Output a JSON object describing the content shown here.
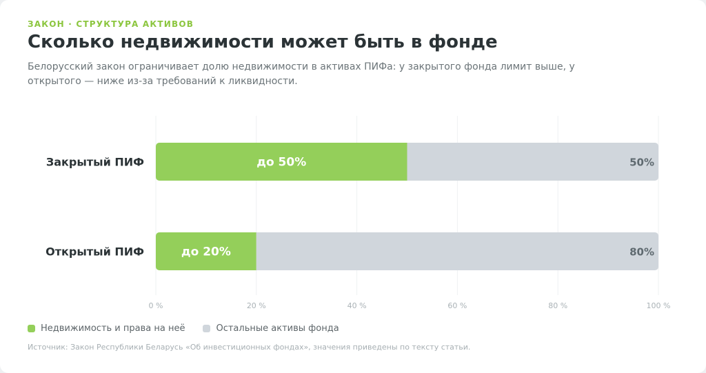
{
  "header": {
    "eyebrow": "ЗАКОН · СТРУКТУРА АКТИВОВ",
    "title": "Сколько недвижимости может быть в фонде",
    "subtitle": "Белорусский закон ограничивает долю недвижимости в активах ПИФа: у закрытого фонда лимит выше, у открытого — ниже из-за требований к ликвидности."
  },
  "legend": {
    "realty_label": "Недвижимость и права на неё",
    "other_label": "Остальные активы фонда"
  },
  "source": "Источник: Закон Республики Беларусь «Об инвестиционных фондах», значения приведены по тексту статьи.",
  "colors": {
    "realty": "#94cf5a",
    "other": "#d0d6dc",
    "realty_text": "#ffffff",
    "other_text": "#5f6a70"
  },
  "chart_data": {
    "type": "bar",
    "orientation": "horizontal",
    "stacked": true,
    "categories": [
      "Закрытый ПИФ",
      "Открытый ПИФ"
    ],
    "series": [
      {
        "name": "Недвижимость и права на неё",
        "values": [
          50,
          20
        ],
        "labels": [
          "до 50%",
          "до 20%"
        ]
      },
      {
        "name": "Остальные активы фонда",
        "values": [
          50,
          80
        ],
        "labels": [
          "50%",
          "80%"
        ]
      }
    ],
    "xlim": [
      0,
      100
    ],
    "x_ticks": [
      0,
      20,
      40,
      60,
      80,
      100
    ],
    "x_tick_labels": [
      "0 %",
      "20 %",
      "40 %",
      "60 %",
      "80 %",
      "100 %"
    ],
    "grid": true,
    "legend_position": "bottom-left"
  }
}
